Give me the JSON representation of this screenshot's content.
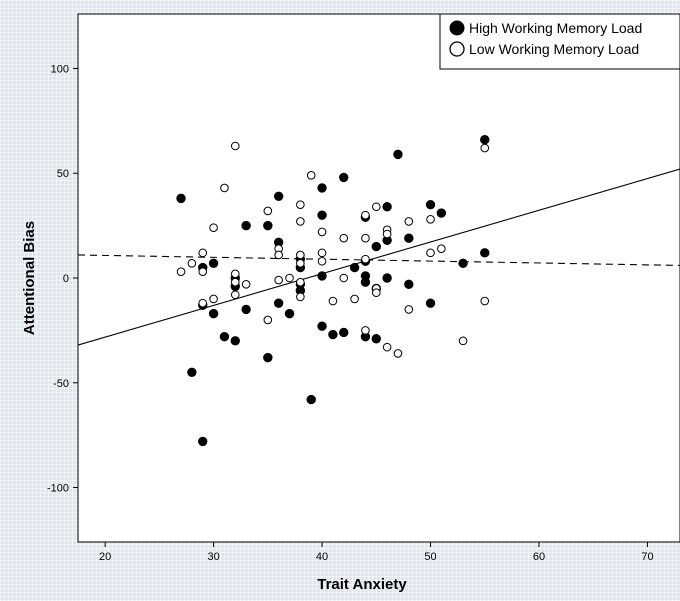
{
  "chart_data": {
    "type": "scatter",
    "title": "",
    "xlabel": "Trait Anxiety",
    "ylabel": "Attentional Bias",
    "xlim": [
      17.5,
      73
    ],
    "ylim": [
      -126,
      126
    ],
    "xticks": [
      20,
      30,
      40,
      50,
      60,
      70
    ],
    "yticks": [
      -100,
      -50,
      0,
      50,
      100
    ],
    "xtick_labels": [
      "20",
      "30",
      "40",
      "50",
      "60",
      "70"
    ],
    "ytick_labels": [
      "-100",
      "-50",
      "0",
      "50",
      "100"
    ],
    "grid": false,
    "legend_position": "top-right",
    "series": [
      {
        "name": "High Working Memory Load",
        "marker": "filled-circle",
        "color": "#000000",
        "fit_line_style": "solid",
        "fit_line": [
          [
            17.5,
            -32
          ],
          [
            73,
            52
          ]
        ],
        "points": [
          [
            27,
            38
          ],
          [
            28,
            -45
          ],
          [
            29,
            -78
          ],
          [
            29,
            5
          ],
          [
            29,
            -13
          ],
          [
            30,
            7
          ],
          [
            30,
            -17
          ],
          [
            31,
            -28
          ],
          [
            32,
            0
          ],
          [
            32,
            -4
          ],
          [
            32,
            -30
          ],
          [
            33,
            25
          ],
          [
            33,
            -15
          ],
          [
            35,
            25
          ],
          [
            35,
            -38
          ],
          [
            36,
            39
          ],
          [
            36,
            17
          ],
          [
            36,
            -12
          ],
          [
            37,
            -17
          ],
          [
            38,
            9
          ],
          [
            38,
            5
          ],
          [
            38,
            -3
          ],
          [
            38,
            -6
          ],
          [
            39,
            -58
          ],
          [
            40,
            43
          ],
          [
            40,
            30
          ],
          [
            40,
            1
          ],
          [
            40,
            -23
          ],
          [
            41,
            -27
          ],
          [
            42,
            48
          ],
          [
            42,
            -26
          ],
          [
            43,
            5
          ],
          [
            44,
            29
          ],
          [
            44,
            8
          ],
          [
            44,
            1
          ],
          [
            44,
            -2
          ],
          [
            44,
            -28
          ],
          [
            45,
            15
          ],
          [
            45,
            -5
          ],
          [
            45,
            -29
          ],
          [
            46,
            34
          ],
          [
            46,
            18
          ],
          [
            46,
            0
          ],
          [
            47,
            59
          ],
          [
            48,
            19
          ],
          [
            48,
            -3
          ],
          [
            50,
            35
          ],
          [
            50,
            -12
          ],
          [
            51,
            31
          ],
          [
            53,
            7
          ],
          [
            55,
            66
          ],
          [
            55,
            12
          ]
        ]
      },
      {
        "name": "Low Working Memory Load",
        "marker": "hollow-circle",
        "color": "#000000",
        "fit_line_style": "dashed",
        "fit_line": [
          [
            17.5,
            11
          ],
          [
            73,
            6
          ]
        ],
        "points": [
          [
            27,
            3
          ],
          [
            28,
            7
          ],
          [
            29,
            12
          ],
          [
            29,
            3
          ],
          [
            29,
            -12
          ],
          [
            30,
            24
          ],
          [
            30,
            -10
          ],
          [
            31,
            43
          ],
          [
            32,
            63
          ],
          [
            32,
            2
          ],
          [
            32,
            -2
          ],
          [
            32,
            -8
          ],
          [
            33,
            -3
          ],
          [
            35,
            32
          ],
          [
            35,
            -20
          ],
          [
            36,
            14
          ],
          [
            36,
            11
          ],
          [
            36,
            -1
          ],
          [
            37,
            0
          ],
          [
            38,
            35
          ],
          [
            38,
            27
          ],
          [
            38,
            11
          ],
          [
            38,
            7
          ],
          [
            38,
            -2
          ],
          [
            38,
            -9
          ],
          [
            39,
            49
          ],
          [
            40,
            22
          ],
          [
            40,
            12
          ],
          [
            40,
            8
          ],
          [
            41,
            -11
          ],
          [
            42,
            19
          ],
          [
            42,
            0
          ],
          [
            43,
            -10
          ],
          [
            44,
            30
          ],
          [
            44,
            19
          ],
          [
            44,
            9
          ],
          [
            44,
            -25
          ],
          [
            45,
            34
          ],
          [
            45,
            -5
          ],
          [
            45,
            -7
          ],
          [
            46,
            23
          ],
          [
            46,
            21
          ],
          [
            46,
            -33
          ],
          [
            47,
            -36
          ],
          [
            48,
            27
          ],
          [
            48,
            -15
          ],
          [
            50,
            28
          ],
          [
            50,
            12
          ],
          [
            51,
            14
          ],
          [
            53,
            -30
          ],
          [
            55,
            62
          ],
          [
            55,
            -11
          ]
        ]
      }
    ]
  }
}
